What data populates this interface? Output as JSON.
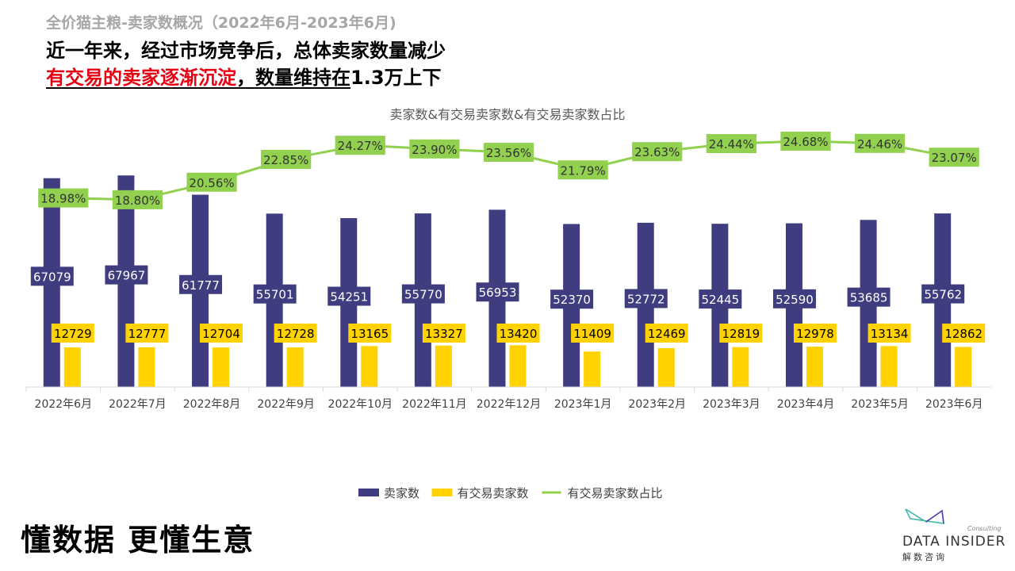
{
  "header": {
    "supertitle": "全价猫主粮-卖家数概况（2022年6月-2023年6月)",
    "headline1": "近一年来，经过市场竞争后，总体卖家数量减少",
    "headline2_red": "有交易的卖家逐渐沉淀",
    "headline2_rest": "，数量维持在1.3万上下"
  },
  "footer": {
    "slogan": "懂数据 更懂生意"
  },
  "logo": {
    "text": "DATA INSIDER",
    "sub": "Consulting",
    "cn": "解数咨询"
  },
  "chart_data": {
    "type": "bar+line",
    "title": "卖家数&有交易卖家数&有交易卖家数占比",
    "categories": [
      "2022年6月",
      "2022年7月",
      "2022年8月",
      "2022年9月",
      "2022年10月",
      "2022年11月",
      "2022年12月",
      "2023年1月",
      "2023年2月",
      "2023年3月",
      "2023年4月",
      "2023年5月",
      "2023年6月"
    ],
    "series": [
      {
        "name": "卖家数",
        "type": "bar",
        "color": "#3f3d7f",
        "values": [
          67079,
          67967,
          61777,
          55701,
          54251,
          55770,
          56953,
          52370,
          52772,
          52445,
          52590,
          53685,
          55762
        ]
      },
      {
        "name": "有交易卖家数",
        "type": "bar",
        "color": "#ffd200",
        "values": [
          12729,
          12777,
          12704,
          12728,
          13165,
          13327,
          13420,
          11409,
          12469,
          12819,
          12978,
          13134,
          12862
        ]
      },
      {
        "name": "有交易卖家数占比",
        "type": "line",
        "axis": "secondary",
        "color": "#92d050",
        "values": [
          18.98,
          18.8,
          20.56,
          22.85,
          24.27,
          23.9,
          23.56,
          21.79,
          23.63,
          24.44,
          24.68,
          24.46,
          23.07
        ],
        "labels": [
          "18.98%",
          "18.80%",
          "20.56%",
          "22.85%",
          "24.27%",
          "23.90%",
          "23.56%",
          "21.79%",
          "23.63%",
          "24.44%",
          "24.68%",
          "24.46%",
          "23.07%"
        ]
      }
    ],
    "ylim": [
      0,
      80000
    ],
    "y2lim": [
      0,
      25
    ],
    "grid": false,
    "legend": "bottom"
  }
}
